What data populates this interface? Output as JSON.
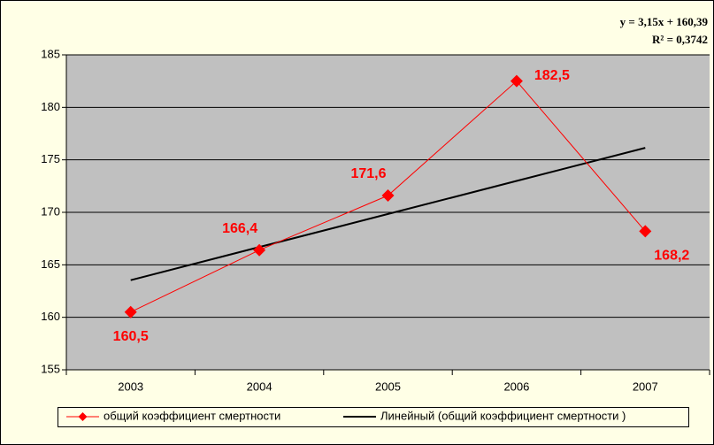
{
  "chart_data": {
    "type": "line",
    "equation": "y = 3,15x + 160,39",
    "r_squared": "R² = 0,3742",
    "categories": [
      "2003",
      "2004",
      "2005",
      "2006",
      "2007"
    ],
    "series": [
      {
        "name": "общий коэффициент смертности",
        "color": "#ff0000",
        "marker": "diamond",
        "values": [
          160.5,
          166.4,
          171.6,
          182.5,
          168.2
        ],
        "value_labels": [
          "160,5",
          "166,4",
          "171,6",
          "182,5",
          "168,2"
        ]
      },
      {
        "name": "Линейный (общий коэффициент смертности )",
        "color": "#000000",
        "values": [
          163.54,
          166.69,
          169.84,
          172.99,
          176.14
        ]
      }
    ],
    "ylim": [
      155,
      185
    ],
    "yticks": [
      155,
      160,
      165,
      170,
      175,
      180,
      185
    ],
    "grid": true,
    "legend": "bottom"
  }
}
